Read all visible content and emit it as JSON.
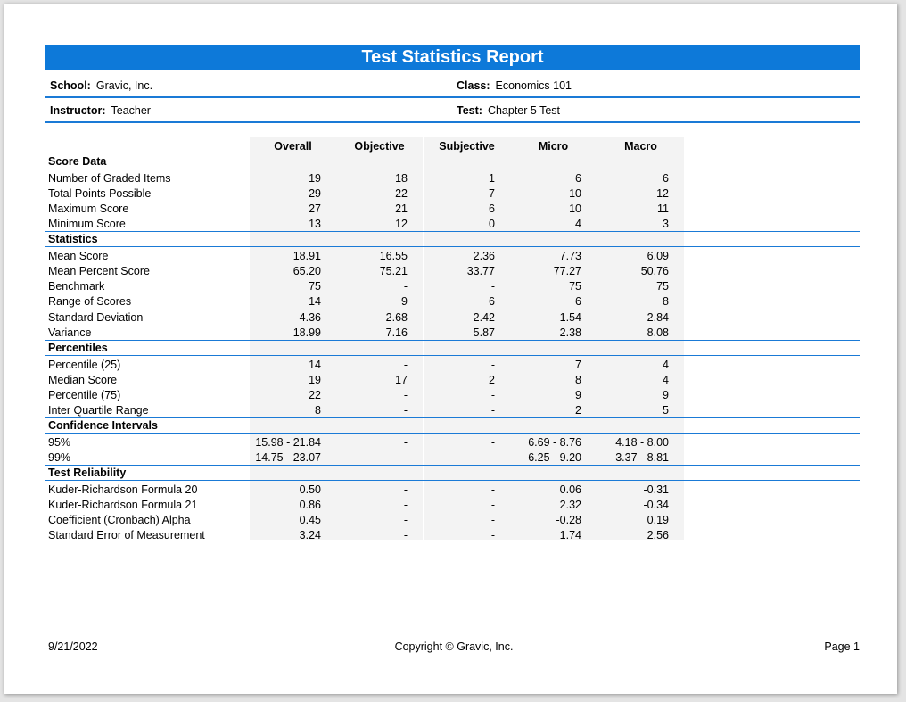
{
  "report": {
    "title": "Test Statistics Report",
    "school_label": "School:",
    "school_value": "Gravic, Inc.",
    "class_label": "Class:",
    "class_value": "Economics 101",
    "instructor_label": "Instructor:",
    "instructor_value": "Teacher",
    "test_label": "Test:",
    "test_value": "Chapter 5 Test"
  },
  "columns": [
    "Overall",
    "Objective",
    "Subjective",
    "Micro",
    "Macro"
  ],
  "sections": [
    {
      "title": "Score Data",
      "rows": [
        {
          "label": "Number of Graded Items",
          "values": [
            "19",
            "18",
            "1",
            "6",
            "6"
          ]
        },
        {
          "label": "Total Points Possible",
          "values": [
            "29",
            "22",
            "7",
            "10",
            "12"
          ]
        },
        {
          "label": "Maximum Score",
          "values": [
            "27",
            "21",
            "6",
            "10",
            "11"
          ]
        },
        {
          "label": "Minimum Score",
          "values": [
            "13",
            "12",
            "0",
            "4",
            "3"
          ]
        }
      ]
    },
    {
      "title": "Statistics",
      "rows": [
        {
          "label": "Mean Score",
          "values": [
            "18.91",
            "16.55",
            "2.36",
            "7.73",
            "6.09"
          ]
        },
        {
          "label": "Mean Percent Score",
          "values": [
            "65.20",
            "75.21",
            "33.77",
            "77.27",
            "50.76"
          ]
        },
        {
          "label": "Benchmark",
          "values": [
            "75",
            "-",
            "-",
            "75",
            "75"
          ]
        },
        {
          "label": "Range of Scores",
          "values": [
            "14",
            "9",
            "6",
            "6",
            "8"
          ]
        },
        {
          "label": "Standard Deviation",
          "values": [
            "4.36",
            "2.68",
            "2.42",
            "1.54",
            "2.84"
          ]
        },
        {
          "label": "Variance",
          "values": [
            "18.99",
            "7.16",
            "5.87",
            "2.38",
            "8.08"
          ]
        }
      ]
    },
    {
      "title": "Percentiles",
      "rows": [
        {
          "label": "Percentile (25)",
          "values": [
            "14",
            "-",
            "-",
            "7",
            "4"
          ]
        },
        {
          "label": "Median Score",
          "values": [
            "19",
            "17",
            "2",
            "8",
            "4"
          ]
        },
        {
          "label": "Percentile (75)",
          "values": [
            "22",
            "-",
            "-",
            "9",
            "9"
          ]
        },
        {
          "label": "Inter Quartile Range",
          "values": [
            "8",
            "-",
            "-",
            "2",
            "5"
          ]
        }
      ]
    },
    {
      "title": "Confidence Intervals",
      "rows": [
        {
          "label": "95%",
          "values": [
            "15.98 - 21.84",
            "-",
            "-",
            "6.69 - 8.76",
            "4.18 - 8.00"
          ]
        },
        {
          "label": "99%",
          "values": [
            "14.75 - 23.07",
            "-",
            "-",
            "6.25 - 9.20",
            "3.37 - 8.81"
          ]
        }
      ]
    },
    {
      "title": "Test Reliability",
      "rows": [
        {
          "label": "Kuder-Richardson Formula 20",
          "values": [
            "0.50",
            "-",
            "-",
            "0.06",
            "-0.31"
          ]
        },
        {
          "label": "Kuder-Richardson Formula 21",
          "values": [
            "0.86",
            "-",
            "-",
            "2.32",
            "-0.34"
          ]
        },
        {
          "label": "Coefficient (Cronbach) Alpha",
          "values": [
            "0.45",
            "-",
            "-",
            "-0.28",
            "0.19"
          ]
        },
        {
          "label": "Standard Error of Measurement",
          "values": [
            "3.24",
            "-",
            "-",
            "1.74",
            "2.56"
          ]
        }
      ]
    }
  ],
  "footer": {
    "date": "9/21/2022",
    "copyright": "Copyright © Gravic, Inc.",
    "page": "Page 1"
  },
  "colors": {
    "accent": "#0d79d9",
    "rule": "#1a7ad6",
    "shade": "#f3f3f3"
  }
}
